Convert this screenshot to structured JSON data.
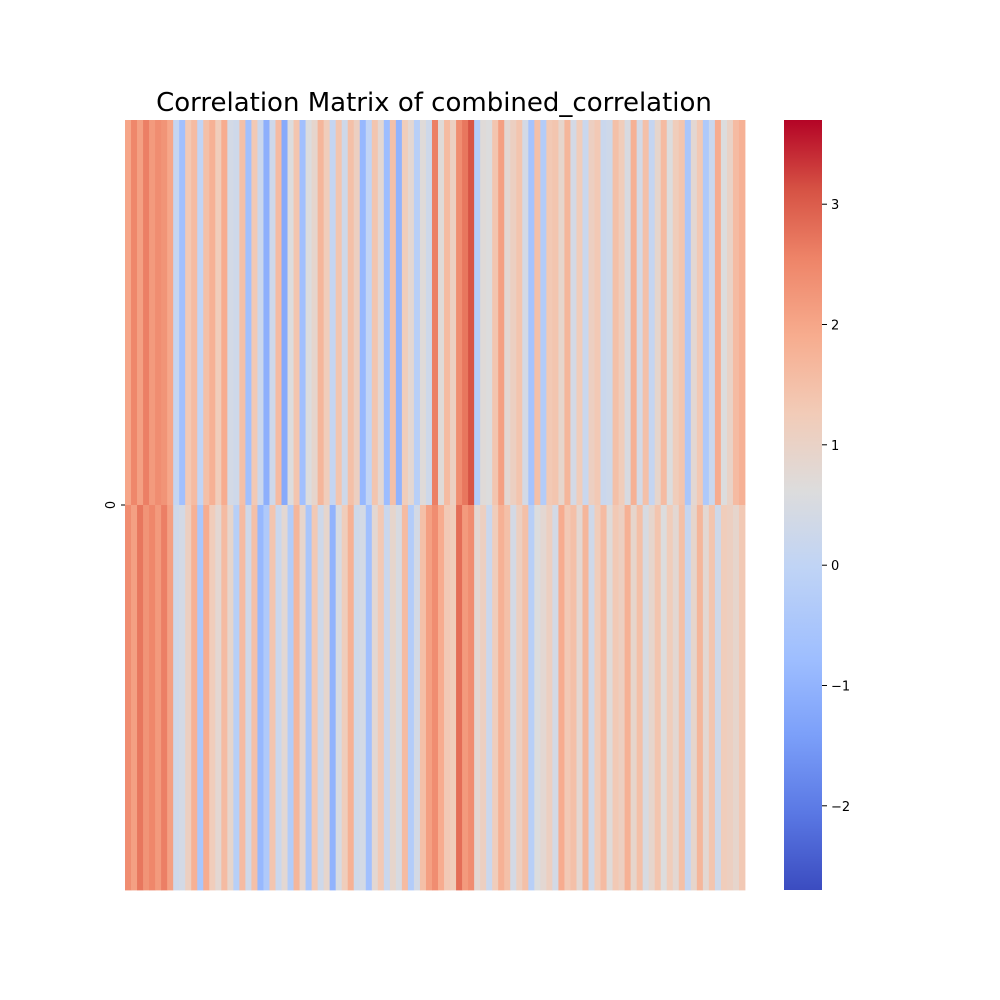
{
  "chart_data": {
    "type": "heatmap",
    "title": "Correlation Matrix of combined_correlation",
    "ylabel": "",
    "xlabel": "",
    "y_tick_labels": [
      "0"
    ],
    "x_tick_labels": [],
    "n_rows": 128,
    "n_cols": 103,
    "colormap": "coolwarm",
    "value_range": [
      -2.7,
      3.7
    ],
    "colorbar": {
      "ticks": [
        3,
        2,
        1,
        0,
        -1,
        -2
      ],
      "tick_labels": [
        "3",
        "2",
        "1",
        "0",
        "−1",
        "−2"
      ]
    },
    "colors": {
      "low": "#3b4cc0",
      "mid": "#dddddd",
      "high": "#b40426"
    },
    "values": [
      [
        2.0,
        2.5,
        2.1,
        2.6,
        2.2,
        2.4,
        2.3,
        2.0,
        0.1,
        -0.7,
        1.3,
        1.6,
        0.0,
        1.5,
        1.8,
        1.2,
        1.9,
        0.4,
        0.3,
        1.5,
        -0.7,
        1.3,
        0.2,
        -1.1,
        0.3,
        1.6,
        -1.2,
        0.6,
        1.4,
        -0.7,
        0.6,
        0.9,
        1.7,
        1.2,
        0.1,
        1.4,
        0.3,
        1.5,
        1.1,
        -0.9,
        0.0,
        1.4,
        0.8,
        -0.8,
        1.5,
        -1.0,
        1.2,
        0.8,
        -0.2,
        0.7,
        0.3,
        2.6,
        0.7,
        1.6,
        1.1,
        2.4,
        2.7,
        3.1,
        -0.3,
        0.7,
        0.6,
        1.4,
        2.1,
        0.8,
        1.1,
        1.4,
        0.4,
        -0.6,
        1.5,
        -0.3,
        1.3,
        1.4,
        0.9,
        1.7,
        0.4,
        1.2,
        0.2,
        1.1,
        1.3,
        0.2,
        0.3,
        1.5,
        1.2,
        0.5,
        1.8,
        0.4,
        1.5,
        0.1,
        0.9,
        1.6,
        0.6,
        1.2,
        1.4,
        -0.5,
        0.8,
        1.3,
        -0.4,
        0.2,
        1.9,
        0.6,
        1.0,
        1.6,
        1.8
      ],
      [
        2.4,
        2.1,
        2.7,
        2.3,
        2.5,
        2.2,
        2.6,
        2.1,
        0.3,
        0.4,
        1.1,
        1.8,
        -0.5,
        1.9,
        1.2,
        0.8,
        1.6,
        0.9,
        -0.2,
        1.6,
        0.3,
        1.5,
        -0.9,
        -0.4,
        1.4,
        0.2,
        0.8,
        -0.3,
        1.7,
        0.9,
        -0.5,
        1.3,
        0.3,
        0.9,
        -1.0,
        0.5,
        1.2,
        1.8,
        0.3,
        0.4,
        -0.7,
        0.8,
        1.3,
        0.2,
        0.9,
        0.5,
        1.6,
        -0.3,
        0.4,
        1.5,
        2.1,
        2.4,
        1.9,
        1.3,
        1.2,
        2.8,
        2.2,
        2.4,
        0.8,
        1.1,
        0.2,
        1.2,
        1.8,
        1.5,
        0.4,
        1.1,
        1.5,
        -0.2,
        0.6,
        0.8,
        1.1,
        0.4,
        1.9,
        1.3,
        1.5,
        0.8,
        1.7,
        0.3,
        1.2,
        1.6,
        0.7,
        1.3,
        1.1,
        1.8,
        0.9,
        1.5,
        0.5,
        0.9,
        1.4,
        0.6,
        1.2,
        0.8,
        1.5,
        0.1,
        0.9,
        1.7,
        0.8,
        1.4,
        0.3,
        1.2,
        1.1,
        0.9,
        1.3
      ]
    ]
  }
}
